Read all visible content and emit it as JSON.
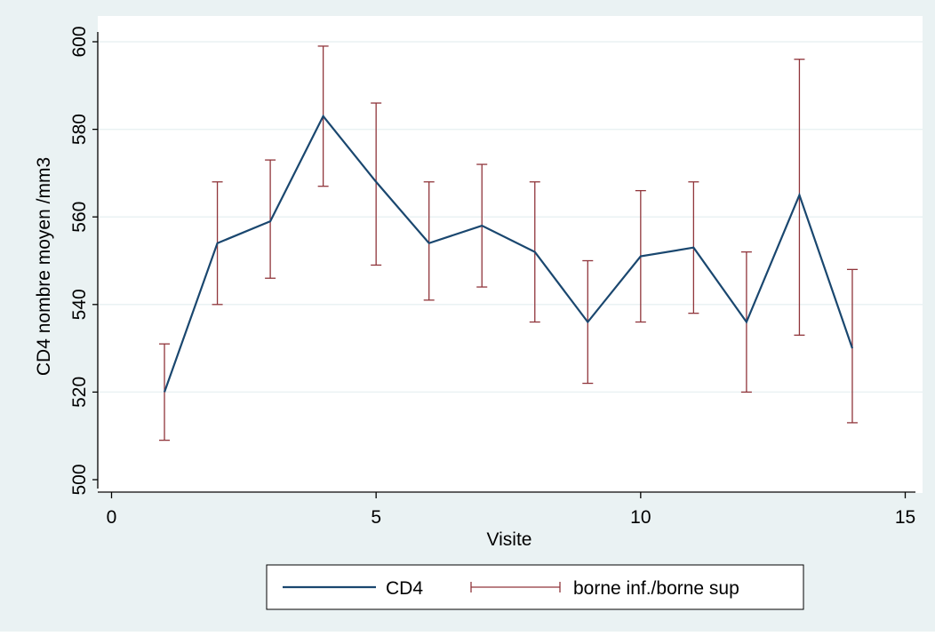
{
  "colors": {
    "outer_background": "#eaf2f3",
    "plot_background": "#ffffff",
    "grid": "#eaf2f3",
    "axis": "#000000",
    "series_cd4": "#1a476f",
    "series_ci": "#90353b",
    "legend_border": "#000000"
  },
  "chart_data": {
    "type": "line",
    "xlabel": "Visite",
    "ylabel": "CD4 nombre moyen /mm3",
    "xlim": [
      0,
      15
    ],
    "ylim": [
      500,
      600
    ],
    "xticks": [
      0,
      5,
      10,
      15
    ],
    "yticks": [
      500,
      520,
      540,
      560,
      580,
      600
    ],
    "grid": true,
    "legend_position": "bottom",
    "x": [
      1,
      2,
      3,
      4,
      5,
      6,
      7,
      8,
      9,
      10,
      11,
      12,
      13,
      14
    ],
    "series": [
      {
        "name": "CD4",
        "kind": "line",
        "values": [
          520,
          554,
          559,
          583,
          568,
          554,
          558,
          552,
          536,
          551,
          553,
          536,
          565,
          530
        ]
      },
      {
        "name": "borne inf./borne sup",
        "kind": "errorbar",
        "lower": [
          509,
          540,
          546,
          567,
          549,
          541,
          544,
          536,
          522,
          536,
          538,
          520,
          533,
          513
        ],
        "upper": [
          531,
          568,
          573,
          599,
          586,
          568,
          572,
          568,
          550,
          566,
          568,
          552,
          596,
          548
        ]
      }
    ]
  }
}
